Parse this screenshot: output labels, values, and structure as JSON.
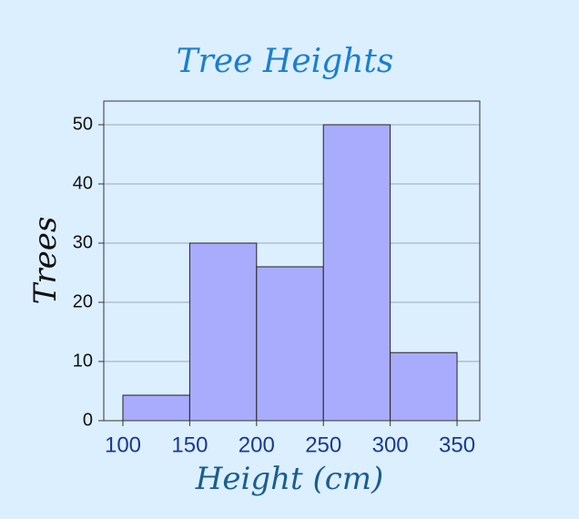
{
  "chart_data": {
    "type": "histogram",
    "title": "Tree Heights",
    "x_label": "Height (cm)",
    "y_label": "Trees",
    "bins": [
      100,
      150,
      200,
      250,
      300,
      350
    ],
    "values": [
      4.3,
      30,
      26,
      50,
      11.5
    ],
    "color": "#a9abfc",
    "xlim": [
      85.7,
      367
    ],
    "xticks": [
      100,
      150,
      200,
      250,
      300,
      350
    ],
    "ylim": [
      0,
      54
    ],
    "yticks": [
      0,
      10,
      20,
      30,
      40,
      50
    ],
    "grid": true
  }
}
